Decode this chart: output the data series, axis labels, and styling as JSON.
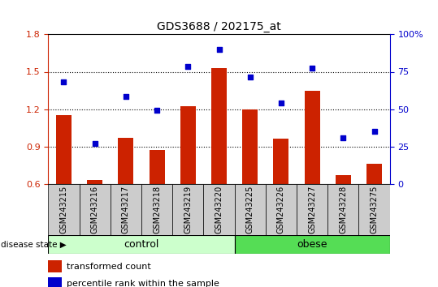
{
  "title": "GDS3688 / 202175_at",
  "categories": [
    "GSM243215",
    "GSM243216",
    "GSM243217",
    "GSM243218",
    "GSM243219",
    "GSM243220",
    "GSM243225",
    "GSM243226",
    "GSM243227",
    "GSM243228",
    "GSM243275"
  ],
  "bar_values": [
    1.15,
    0.63,
    0.97,
    0.87,
    1.22,
    1.53,
    1.2,
    0.96,
    1.35,
    0.67,
    0.76
  ],
  "dot_values": [
    1.42,
    0.92,
    1.3,
    1.19,
    1.54,
    1.68,
    1.46,
    1.25,
    1.53,
    0.97,
    1.02
  ],
  "ylim_left": [
    0.6,
    1.8
  ],
  "ylim_right": [
    0.0,
    100.0
  ],
  "yticks_left": [
    0.6,
    0.9,
    1.2,
    1.5,
    1.8
  ],
  "yticks_right": [
    0,
    25,
    50,
    75,
    100
  ],
  "ytick_right_labels": [
    "0",
    "25",
    "50",
    "75",
    "100%"
  ],
  "bar_color": "#cc2200",
  "dot_color": "#0000cc",
  "control_color": "#ccffcc",
  "obese_color": "#55dd55",
  "xtick_bg_color": "#cccccc",
  "control_n": 6,
  "obese_n": 5,
  "legend_bar_label": "transformed count",
  "legend_dot_label": "percentile rank within the sample",
  "disease_state_label": "disease state",
  "control_label": "control",
  "obese_label": "obese",
  "ylabel_left_color": "#cc2200",
  "ylabel_right_color": "#0000cc",
  "title_fontsize": 10,
  "tick_fontsize": 8,
  "xtick_fontsize": 7,
  "legend_fontsize": 8
}
